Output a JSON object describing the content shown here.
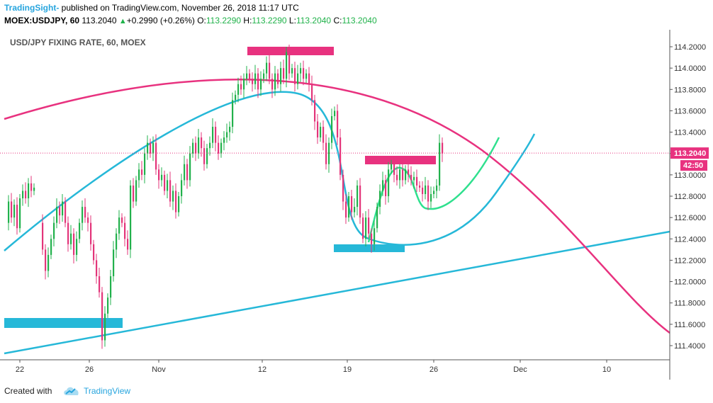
{
  "header": {
    "brand": "TradingSight-",
    "published": " published on TradingView.com, November 26, 2018 11:17 UTC",
    "symbol": "MOEX:USDJPY, 60",
    "price": "113.2040",
    "change": "+0.2990 (+0.26%)",
    "o_label": "O:",
    "o_value": "113.2290",
    "h_label": "H:",
    "h_value": "113.2290",
    "l_label": "L:",
    "l_value": "113.2040",
    "c_label": "C:",
    "c_value": "113.2040"
  },
  "footer": {
    "created_with": "Created with",
    "tradingview": "TradingView"
  },
  "colors": {
    "up": "#22b14c",
    "down": "#e3357a",
    "magenta": "#e8327f",
    "cyan": "#26b8d8",
    "green": "#2fe08e",
    "price_label_bg": "#e8327f"
  },
  "chart_data": {
    "type": "candlestick",
    "title": "USD/JPY FIXING RATE, 60, MOEX",
    "ylim": [
      111.3,
      114.3
    ],
    "y_ticks": [
      "114.2000",
      "114.0000",
      "113.8000",
      "113.6000",
      "113.4000",
      "113.2000",
      "113.0000",
      "112.8000",
      "112.6000",
      "112.4000",
      "112.2000",
      "112.0000",
      "111.8000",
      "111.6000",
      "111.4000"
    ],
    "x_ticks": [
      "22",
      "26",
      "Nov",
      "12",
      "19",
      "26",
      "Dec",
      "10"
    ],
    "last_price": "113.2040",
    "countdown": "42:50",
    "price_path": [
      [
        0,
        112.55
      ],
      [
        4,
        112.75
      ],
      [
        8,
        112.6
      ],
      [
        12,
        112.72
      ],
      [
        16,
        112.5
      ],
      [
        20,
        112.78
      ],
      [
        24,
        112.85
      ],
      [
        28,
        112.78
      ],
      [
        32,
        112.92
      ],
      [
        36,
        112.85
      ],
      [
        40,
        112.88
      ],
      [
        48,
        112.55
      ],
      [
        52,
        112.3
      ],
      [
        56,
        112.1
      ],
      [
        60,
        112.25
      ],
      [
        64,
        112.4
      ],
      [
        68,
        112.55
      ],
      [
        72,
        112.7
      ],
      [
        76,
        112.62
      ],
      [
        80,
        112.75
      ],
      [
        84,
        112.55
      ],
      [
        88,
        112.35
      ],
      [
        92,
        112.45
      ],
      [
        96,
        112.25
      ],
      [
        100,
        112.4
      ],
      [
        104,
        112.55
      ],
      [
        108,
        112.7
      ],
      [
        112,
        112.6
      ],
      [
        116,
        112.55
      ],
      [
        120,
        112.35
      ],
      [
        124,
        112.2
      ],
      [
        128,
        112.05
      ],
      [
        132,
        111.9
      ],
      [
        136,
        111.45
      ],
      [
        140,
        111.7
      ],
      [
        144,
        111.85
      ],
      [
        148,
        112.05
      ],
      [
        152,
        112.3
      ],
      [
        156,
        112.45
      ],
      [
        160,
        112.6
      ],
      [
        164,
        112.55
      ],
      [
        168,
        112.4
      ],
      [
        172,
        112.3
      ],
      [
        176,
        112.9
      ],
      [
        180,
        112.75
      ],
      [
        184,
        112.95
      ],
      [
        188,
        113.05
      ],
      [
        192,
        113.0
      ],
      [
        196,
        113.2
      ],
      [
        200,
        113.3
      ],
      [
        204,
        113.2
      ],
      [
        208,
        113.3
      ],
      [
        212,
        113.05
      ],
      [
        216,
        112.95
      ],
      [
        220,
        113.0
      ],
      [
        224,
        112.85
      ],
      [
        228,
        112.95
      ],
      [
        232,
        112.75
      ],
      [
        236,
        112.85
      ],
      [
        240,
        112.65
      ],
      [
        244,
        112.8
      ],
      [
        248,
        112.95
      ],
      [
        252,
        113.1
      ],
      [
        256,
        112.95
      ],
      [
        260,
        113.2
      ],
      [
        264,
        113.3
      ],
      [
        268,
        113.2
      ],
      [
        272,
        113.35
      ],
      [
        276,
        113.25
      ],
      [
        280,
        113.1
      ],
      [
        284,
        113.25
      ],
      [
        288,
        113.3
      ],
      [
        292,
        113.45
      ],
      [
        296,
        113.3
      ],
      [
        300,
        113.2
      ],
      [
        304,
        113.3
      ],
      [
        308,
        113.35
      ],
      [
        312,
        113.4
      ],
      [
        316,
        113.45
      ],
      [
        320,
        113.7
      ],
      [
        324,
        113.75
      ],
      [
        328,
        113.85
      ],
      [
        332,
        113.8
      ],
      [
        336,
        113.9
      ],
      [
        340,
        113.95
      ],
      [
        344,
        113.9
      ],
      [
        348,
        113.85
      ],
      [
        352,
        113.95
      ],
      [
        356,
        113.8
      ],
      [
        360,
        113.9
      ],
      [
        364,
        113.95
      ],
      [
        368,
        114.05
      ],
      [
        372,
        113.9
      ],
      [
        376,
        113.8
      ],
      [
        380,
        113.95
      ],
      [
        384,
        113.85
      ],
      [
        388,
        114.0
      ],
      [
        392,
        113.9
      ],
      [
        396,
        114.15
      ],
      [
        400,
        113.95
      ],
      [
        404,
        114.0
      ],
      [
        408,
        113.85
      ],
      [
        412,
        113.95
      ],
      [
        416,
        114.0
      ],
      [
        420,
        113.9
      ],
      [
        424,
        113.95
      ],
      [
        428,
        113.85
      ],
      [
        432,
        113.7
      ],
      [
        436,
        113.5
      ],
      [
        440,
        113.35
      ],
      [
        444,
        113.45
      ],
      [
        448,
        113.3
      ],
      [
        452,
        113.1
      ],
      [
        456,
        113.3
      ],
      [
        460,
        113.55
      ],
      [
        464,
        113.6
      ],
      [
        468,
        113.35
      ],
      [
        472,
        113.0
      ],
      [
        476,
        112.75
      ],
      [
        480,
        112.6
      ],
      [
        484,
        112.8
      ],
      [
        488,
        112.65
      ],
      [
        492,
        112.7
      ],
      [
        496,
        112.9
      ],
      [
        500,
        112.6
      ],
      [
        504,
        112.4
      ],
      [
        508,
        112.6
      ],
      [
        512,
        112.45
      ],
      [
        516,
        112.35
      ],
      [
        520,
        112.5
      ],
      [
        524,
        112.7
      ],
      [
        528,
        112.85
      ],
      [
        532,
        112.95
      ],
      [
        536,
        112.8
      ],
      [
        540,
        113.05
      ],
      [
        544,
        113.1
      ],
      [
        548,
        113.0
      ],
      [
        552,
        112.95
      ],
      [
        556,
        113.05
      ],
      [
        560,
        112.95
      ],
      [
        564,
        113.05
      ],
      [
        568,
        113.0
      ],
      [
        572,
        112.95
      ],
      [
        576,
        112.98
      ],
      [
        580,
        112.9
      ],
      [
        584,
        112.88
      ],
      [
        588,
        112.82
      ],
      [
        592,
        112.9
      ],
      [
        596,
        112.75
      ],
      [
        600,
        112.82
      ],
      [
        604,
        112.85
      ],
      [
        608,
        112.9
      ],
      [
        612,
        113.3
      ],
      [
        616,
        113.2
      ]
    ]
  }
}
